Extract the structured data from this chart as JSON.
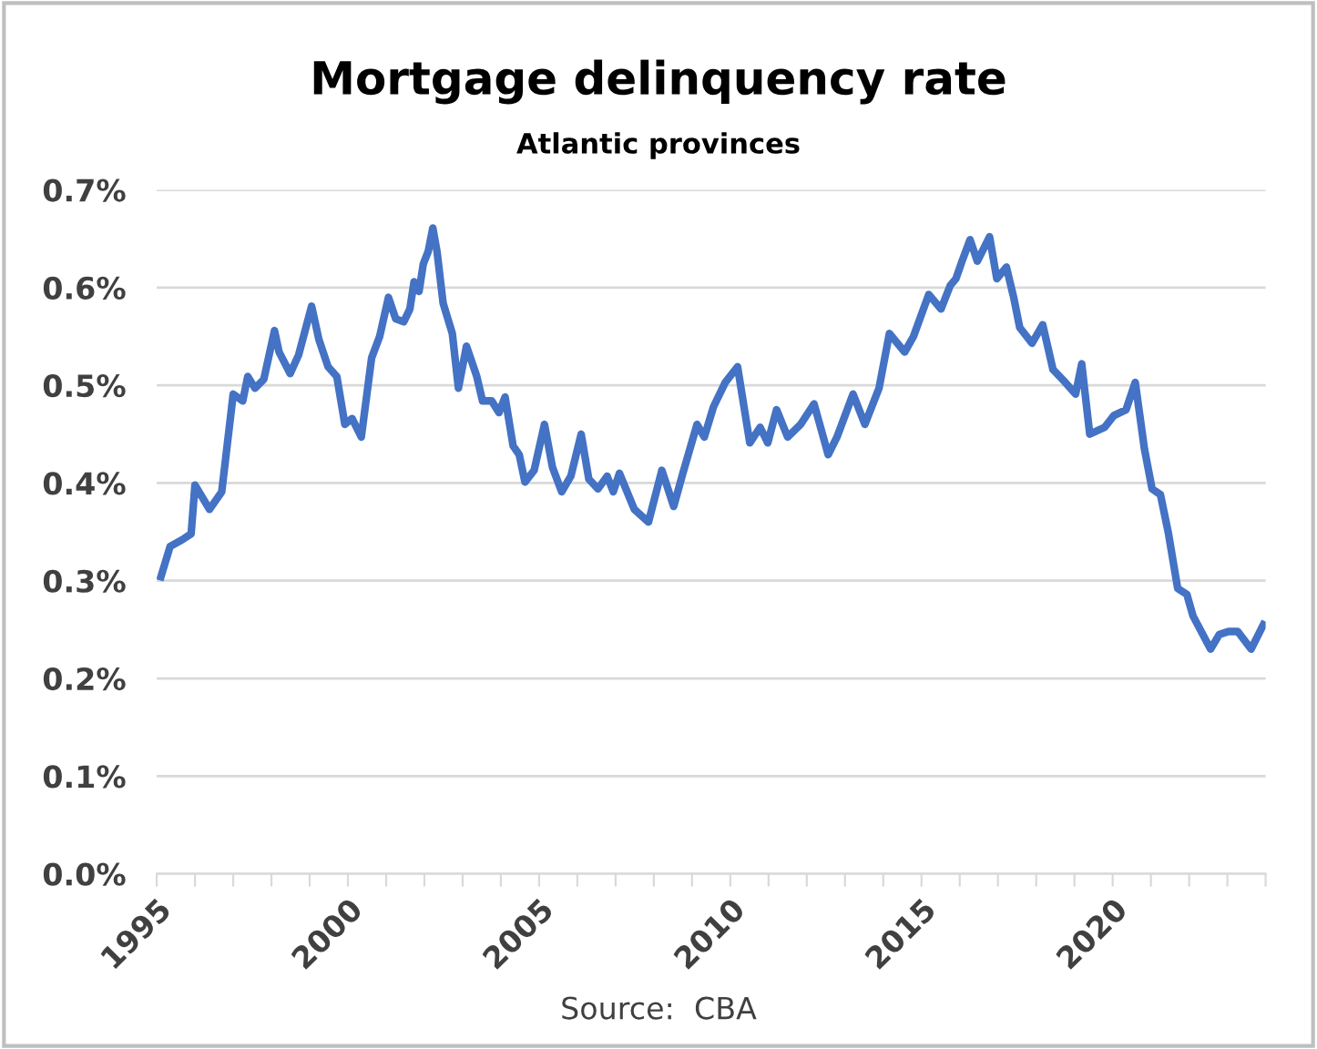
{
  "chart_data": {
    "type": "line",
    "title": "Mortgage delinquency rate",
    "subtitle": "Atlantic provinces",
    "annotations": [
      "Source:  CBA"
    ],
    "series": [
      {
        "color": "#4472c4",
        "x": [
          1995.11,
          1995.35,
          1995.67,
          1995.9,
          1996.0,
          1996.38,
          1996.7,
          1997.0,
          1997.25,
          1997.38,
          1997.57,
          1997.8,
          1998.08,
          1998.2,
          1998.49,
          1998.71,
          1999.05,
          1999.24,
          1999.48,
          1999.71,
          1999.92,
          2000.11,
          2000.35,
          2000.62,
          2000.83,
          2001.06,
          2001.25,
          2001.46,
          2001.62,
          2001.73,
          2001.86,
          2001.97,
          2002.1,
          2002.22,
          2002.33,
          2002.49,
          2002.73,
          2002.89,
          2003.1,
          2003.37,
          2003.52,
          2003.76,
          2003.95,
          2004.11,
          2004.32,
          2004.48,
          2004.63,
          2004.87,
          2005.14,
          2005.35,
          2005.59,
          2005.83,
          2006.1,
          2006.3,
          2006.54,
          2006.78,
          2006.94,
          2007.1,
          2007.49,
          2007.86,
          2008.21,
          2008.52,
          2008.76,
          2009.13,
          2009.32,
          2009.56,
          2009.87,
          2010.19,
          2010.51,
          2010.78,
          2010.98,
          2011.21,
          2011.5,
          2011.84,
          2012.19,
          2012.56,
          2012.79,
          2013.21,
          2013.52,
          2013.89,
          2014.16,
          2014.56,
          2014.79,
          2015.19,
          2015.51,
          2015.75,
          2015.9,
          2016.06,
          2016.27,
          2016.46,
          2016.78,
          2016.97,
          2017.22,
          2017.41,
          2017.57,
          2017.89,
          2018.17,
          2018.44,
          2018.76,
          2019.03,
          2019.19,
          2019.4,
          2019.79,
          2020.03,
          2020.35,
          2020.59,
          2020.83,
          2021.03,
          2021.25,
          2021.46,
          2021.7,
          2021.94,
          2022.1,
          2022.56,
          2022.79,
          2023.03,
          2023.27,
          2023.62,
          2023.94
        ],
        "values": [
          0.304,
          0.335,
          0.342,
          0.348,
          0.398,
          0.373,
          0.391,
          0.491,
          0.484,
          0.509,
          0.497,
          0.506,
          0.556,
          0.534,
          0.512,
          0.531,
          0.581,
          0.547,
          0.519,
          0.509,
          0.46,
          0.466,
          0.447,
          0.528,
          0.55,
          0.59,
          0.568,
          0.565,
          0.578,
          0.606,
          0.596,
          0.624,
          0.637,
          0.661,
          0.637,
          0.584,
          0.553,
          0.497,
          0.54,
          0.509,
          0.484,
          0.484,
          0.472,
          0.488,
          0.438,
          0.429,
          0.401,
          0.413,
          0.46,
          0.416,
          0.391,
          0.407,
          0.45,
          0.404,
          0.394,
          0.407,
          0.391,
          0.41,
          0.373,
          0.36,
          0.413,
          0.376,
          0.41,
          0.46,
          0.447,
          0.478,
          0.503,
          0.519,
          0.441,
          0.457,
          0.441,
          0.475,
          0.447,
          0.46,
          0.481,
          0.429,
          0.447,
          0.491,
          0.46,
          0.497,
          0.553,
          0.534,
          0.55,
          0.593,
          0.578,
          0.602,
          0.609,
          0.627,
          0.649,
          0.627,
          0.652,
          0.609,
          0.621,
          0.59,
          0.559,
          0.543,
          0.562,
          0.516,
          0.503,
          0.491,
          0.522,
          0.45,
          0.457,
          0.469,
          0.475,
          0.503,
          0.435,
          0.394,
          0.388,
          0.348,
          0.292,
          0.286,
          0.264,
          0.23,
          0.245,
          0.248,
          0.248,
          0.23,
          0.255
        ]
      }
    ],
    "xlim": [
      1995,
      2024
    ],
    "xticks": [
      1995,
      {
        "value": 1996,
        "label": null
      },
      {
        "value": 1997,
        "label": null
      },
      {
        "value": 1998,
        "label": null
      },
      {
        "value": 1999,
        "label": null
      },
      2000,
      {
        "value": 2001,
        "label": null
      },
      {
        "value": 2002,
        "label": null
      },
      {
        "value": 2003,
        "label": null
      },
      {
        "value": 2004,
        "label": null
      },
      2005,
      {
        "value": 2006,
        "label": null
      },
      {
        "value": 2007,
        "label": null
      },
      {
        "value": 2008,
        "label": null
      },
      {
        "value": 2009,
        "label": null
      },
      2010,
      {
        "value": 2011,
        "label": null
      },
      {
        "value": 2012,
        "label": null
      },
      {
        "value": 2013,
        "label": null
      },
      {
        "value": 2014,
        "label": null
      },
      2015,
      {
        "value": 2016,
        "label": null
      },
      {
        "value": 2017,
        "label": null
      },
      {
        "value": 2018,
        "label": null
      },
      {
        "value": 2019,
        "label": null
      },
      2020,
      {
        "value": 2021,
        "label": null
      },
      {
        "value": 2022,
        "label": null
      },
      {
        "value": 2023,
        "label": null
      },
      {
        "value": 2024,
        "label": null
      }
    ],
    "ylim": [
      0,
      0.7
    ],
    "yticks": [
      {
        "value": 0,
        "label": "0.0%"
      },
      {
        "value": 0.1,
        "label": "0.1%"
      },
      {
        "value": 0.2,
        "label": "0.2%"
      },
      {
        "value": 0.3,
        "label": "0.3%"
      },
      {
        "value": 0.4,
        "label": "0.4%"
      },
      {
        "value": 0.5,
        "label": "0.5%"
      },
      {
        "value": 0.6,
        "label": "0.6%"
      },
      {
        "value": 0.7,
        "label": "0.7%"
      }
    ],
    "grid": "y",
    "legend": false,
    "marker": "none",
    "line_style": "solid"
  }
}
